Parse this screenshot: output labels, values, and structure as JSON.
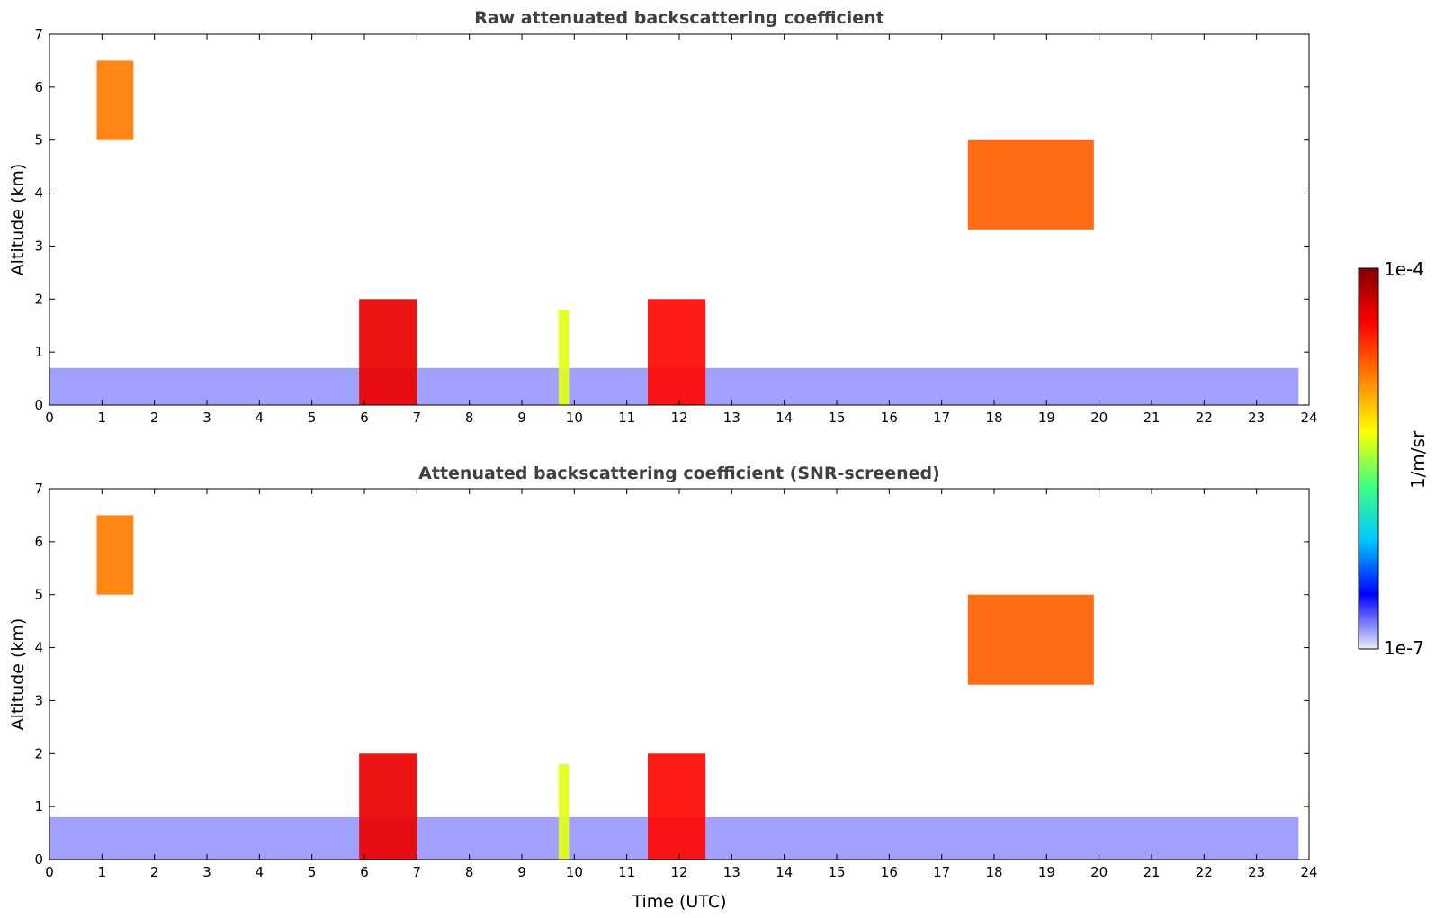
{
  "chart_data": [
    {
      "type": "heatmap",
      "title": "Raw attenuated backscattering coefficient",
      "xlabel": "",
      "ylabel": "Altitude (km)",
      "xlim": [
        0,
        24
      ],
      "ylim": [
        0,
        7
      ],
      "x_ticks": [
        "0",
        "1",
        "2",
        "3",
        "4",
        "5",
        "6",
        "7",
        "8",
        "9",
        "10",
        "11",
        "12",
        "13",
        "14",
        "15",
        "16",
        "17",
        "18",
        "19",
        "20",
        "21",
        "22",
        "23",
        "24"
      ],
      "y_ticks": [
        "0",
        "1",
        "2",
        "3",
        "4",
        "5",
        "6",
        "7"
      ],
      "features": [
        {
          "name": "surface layer",
          "t_start": 0,
          "t_end": 23.8,
          "alt_min": 0,
          "alt_max": 0.7,
          "level": 0.05
        },
        {
          "name": "cloud",
          "t_start": 5.9,
          "t_end": 7.0,
          "alt_min": 0,
          "alt_max": 2.0,
          "level": 0.88
        },
        {
          "name": "cloud",
          "t_start": 11.4,
          "t_end": 12.5,
          "alt_min": 0,
          "alt_max": 2.0,
          "level": 0.85
        },
        {
          "name": "cloud",
          "t_start": 9.7,
          "t_end": 9.9,
          "alt_min": 0,
          "alt_max": 1.8,
          "level": 0.55
        },
        {
          "name": "cirrus",
          "t_start": 0.9,
          "t_end": 1.6,
          "alt_min": 5.0,
          "alt_max": 6.5,
          "level": 0.72
        },
        {
          "name": "cirrus",
          "t_start": 17.5,
          "t_end": 19.9,
          "alt_min": 3.3,
          "alt_max": 5.0,
          "level": 0.75
        }
      ]
    },
    {
      "type": "heatmap",
      "title": "Attenuated backscattering coefficient (SNR-screened)",
      "xlabel": "Time (UTC)",
      "ylabel": "Altitude (km)",
      "xlim": [
        0,
        24
      ],
      "ylim": [
        0,
        7
      ],
      "x_ticks": [
        "0",
        "1",
        "2",
        "3",
        "4",
        "5",
        "6",
        "7",
        "8",
        "9",
        "10",
        "11",
        "12",
        "13",
        "14",
        "15",
        "16",
        "17",
        "18",
        "19",
        "20",
        "21",
        "22",
        "23",
        "24"
      ],
      "y_ticks": [
        "0",
        "1",
        "2",
        "3",
        "4",
        "5",
        "6",
        "7"
      ],
      "features": [
        {
          "name": "surface layer",
          "t_start": 0,
          "t_end": 23.8,
          "alt_min": 0,
          "alt_max": 0.8,
          "level": 0.05
        },
        {
          "name": "cloud",
          "t_start": 5.9,
          "t_end": 7.0,
          "alt_min": 0,
          "alt_max": 2.0,
          "level": 0.88
        },
        {
          "name": "cloud",
          "t_start": 11.4,
          "t_end": 12.5,
          "alt_min": 0,
          "alt_max": 2.0,
          "level": 0.85
        },
        {
          "name": "cloud",
          "t_start": 9.7,
          "t_end": 9.9,
          "alt_min": 0,
          "alt_max": 1.8,
          "level": 0.55
        },
        {
          "name": "cirrus",
          "t_start": 0.9,
          "t_end": 1.6,
          "alt_min": 5.0,
          "alt_max": 6.5,
          "level": 0.72
        },
        {
          "name": "cirrus",
          "t_start": 17.5,
          "t_end": 19.9,
          "alt_min": 3.3,
          "alt_max": 5.0,
          "level": 0.75
        }
      ]
    }
  ],
  "colorbar": {
    "max_label": "1e-4",
    "min_label": "1e-7",
    "unit_label": "1/m/sr",
    "colors": [
      "#ececfc",
      "#0000ff",
      "#00c8ff",
      "#40ff80",
      "#ffff00",
      "#ff8000",
      "#ff0000",
      "#800000"
    ]
  }
}
